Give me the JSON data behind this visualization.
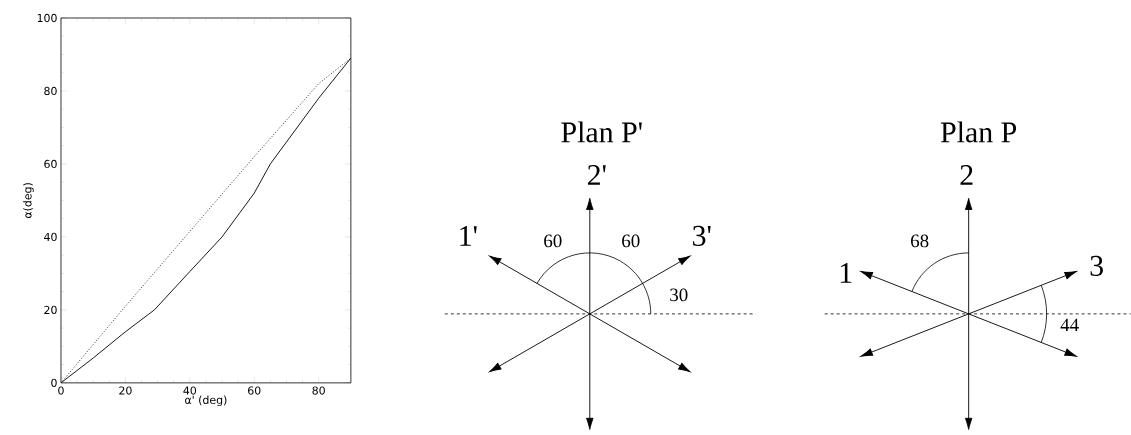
{
  "chart_data": [
    {
      "type": "line",
      "xlabel": "α' (deg)",
      "ylabel": "α(deg)",
      "xlim": [
        0,
        90
      ],
      "ylim": [
        0,
        100
      ],
      "xticks": [
        0,
        20,
        40,
        60,
        80
      ],
      "yticks": [
        0,
        20,
        40,
        60,
        80,
        100
      ],
      "marker": "none",
      "series": [
        {
          "color": "#000000",
          "line_style": "solid",
          "x": [
            0,
            10,
            20,
            29,
            40,
            50,
            60,
            65,
            70,
            80,
            90
          ],
          "values": [
            0,
            6.8,
            14,
            20,
            30.5,
            40,
            52,
            60,
            66,
            78,
            89
          ]
        },
        {
          "color": "#000000",
          "line_style": "dotted",
          "x": [
            0,
            20,
            40,
            60,
            80,
            90
          ],
          "values": [
            0,
            21,
            41.5,
            62,
            82,
            89
          ]
        }
      ]
    },
    {
      "type": "other",
      "title": "Plan P'",
      "annotations": [
        "2'",
        "1'",
        "3'",
        "60",
        "60",
        "30"
      ]
    },
    {
      "type": "other",
      "title": "Plan P",
      "annotations": [
        "2",
        "1",
        "3",
        "68",
        "44"
      ]
    }
  ]
}
